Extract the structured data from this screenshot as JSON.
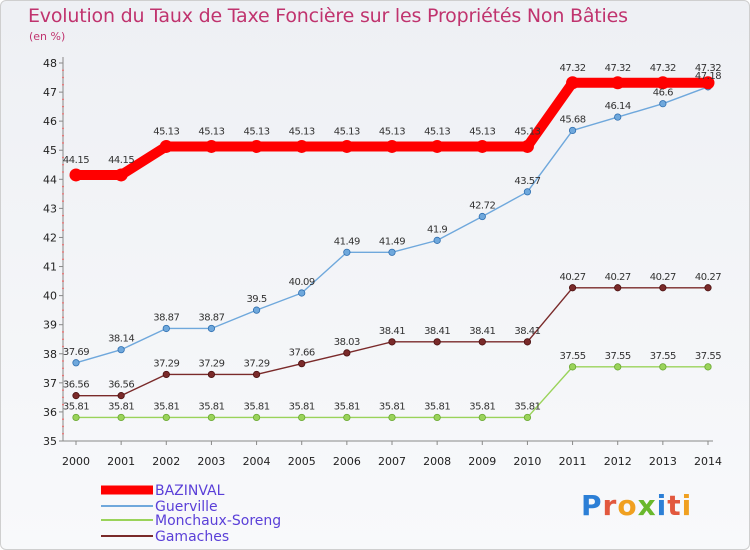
{
  "title": "Evolution du Taux de Taxe Foncière sur les Propriétés Non Bâties",
  "unit": "(en %)",
  "logo": "Proxiti",
  "chart_data": {
    "type": "line",
    "title": "Evolution du Taux de Taxe Foncière sur les Propriétés Non Bâties",
    "ylabel": "(en %)",
    "xlabel": "",
    "ylim": [
      35,
      48
    ],
    "yticks": [
      35,
      36,
      37,
      38,
      39,
      40,
      41,
      42,
      43,
      44,
      45,
      46,
      47,
      48
    ],
    "x": [
      "2000",
      "2001",
      "2002",
      "2003",
      "2004",
      "2005",
      "2006",
      "2007",
      "2008",
      "2009",
      "2010",
      "2011",
      "2012",
      "2013",
      "2014"
    ],
    "grid": false,
    "legend": "bottom-left",
    "series": [
      {
        "name": "BAZINVAL",
        "color": "#ff0000",
        "values": [
          44.15,
          44.15,
          45.13,
          45.13,
          45.13,
          45.13,
          45.13,
          45.13,
          45.13,
          45.13,
          45.13,
          47.32,
          47.32,
          47.32,
          47.32
        ],
        "labels": [
          "44.15",
          "44.15",
          "45.13",
          "45.13",
          "45.13",
          "45.13",
          "45.13",
          "45.13",
          "45.13",
          "45.13",
          "45.13",
          "47.32",
          "47.32",
          "47.32",
          "47.32"
        ]
      },
      {
        "name": "Guerville",
        "color": "#6fa8dc",
        "values": [
          37.69,
          38.14,
          38.87,
          38.87,
          39.5,
          40.09,
          41.49,
          41.49,
          41.9,
          42.72,
          43.57,
          45.68,
          46.14,
          46.6,
          47.18
        ],
        "labels": [
          "37.69",
          "38.14",
          "38.87",
          "38.87",
          "39.5",
          "40.09",
          "41.49",
          "41.49",
          "41.9",
          "42.72",
          "43.57",
          "45.68",
          "46.14",
          "46.6",
          "47.18"
        ]
      },
      {
        "name": "Monchaux-Soreng",
        "color": "#9ad35a",
        "values": [
          35.81,
          35.81,
          35.81,
          35.81,
          35.81,
          35.81,
          35.81,
          35.81,
          35.81,
          35.81,
          35.81,
          37.55,
          37.55,
          37.55,
          37.55
        ],
        "labels": [
          "35.81",
          "35.81",
          "35.81",
          "35.81",
          "35.81",
          "35.81",
          "35.81",
          "35.81",
          "35.81",
          "35.81",
          "35.81",
          "37.55",
          "37.55",
          "37.55",
          "37.55"
        ]
      },
      {
        "name": "Gamaches",
        "color": "#7a2a2a",
        "values": [
          36.56,
          36.56,
          37.29,
          37.29,
          37.29,
          37.66,
          38.03,
          38.41,
          38.41,
          38.41,
          38.41,
          40.27,
          40.27,
          40.27,
          40.27
        ],
        "labels": [
          "36.56",
          "36.56",
          "37.29",
          "37.29",
          "37.29",
          "37.66",
          "38.03",
          "38.41",
          "38.41",
          "38.41",
          "38.41",
          "40.27",
          "40.27",
          "40.27",
          "40.27"
        ]
      }
    ]
  }
}
